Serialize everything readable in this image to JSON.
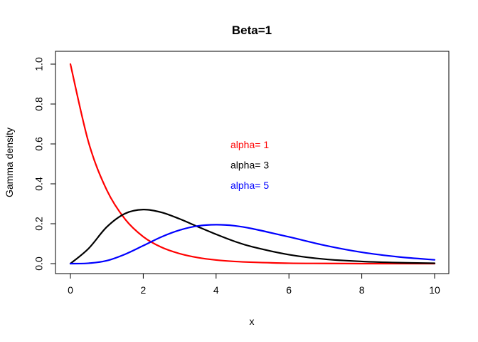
{
  "chart_data": {
    "type": "line",
    "title": "Beta=1",
    "xlabel": "x",
    "ylabel": "Gamma density",
    "xlim": [
      0,
      10
    ],
    "ylim": [
      0,
      1
    ],
    "x_ticks": [
      "0",
      "2",
      "4",
      "6",
      "8",
      "10"
    ],
    "y_ticks": [
      "0.0",
      "0.2",
      "0.4",
      "0.6",
      "0.8",
      "1.0"
    ],
    "grid": false,
    "legend_position": "center",
    "series": [
      {
        "name": "alpha= 1",
        "color": "#ff0000",
        "x": [
          0,
          0.5,
          1,
          1.5,
          2,
          2.5,
          3,
          3.5,
          4,
          4.5,
          5,
          6,
          7,
          8,
          9,
          10
        ],
        "y": [
          1.0,
          0.607,
          0.368,
          0.223,
          0.135,
          0.082,
          0.05,
          0.03,
          0.018,
          0.011,
          0.007,
          0.002,
          0.001,
          0.0,
          0.0,
          0.0
        ]
      },
      {
        "name": "alpha= 3",
        "color": "#000000",
        "x": [
          0,
          0.5,
          1,
          1.5,
          2,
          2.5,
          3,
          3.5,
          4,
          4.5,
          5,
          6,
          7,
          8,
          9,
          10
        ],
        "y": [
          0.0,
          0.076,
          0.184,
          0.251,
          0.271,
          0.257,
          0.224,
          0.185,
          0.147,
          0.112,
          0.084,
          0.045,
          0.022,
          0.011,
          0.005,
          0.002
        ]
      },
      {
        "name": "alpha= 5",
        "color": "#0000ff",
        "x": [
          0,
          0.5,
          1,
          1.5,
          2,
          2.5,
          3,
          3.5,
          4,
          4.5,
          5,
          6,
          7,
          8,
          9,
          10
        ],
        "y": [
          0.0,
          0.002,
          0.015,
          0.047,
          0.09,
          0.134,
          0.168,
          0.189,
          0.195,
          0.19,
          0.175,
          0.134,
          0.091,
          0.057,
          0.034,
          0.019
        ]
      }
    ]
  }
}
